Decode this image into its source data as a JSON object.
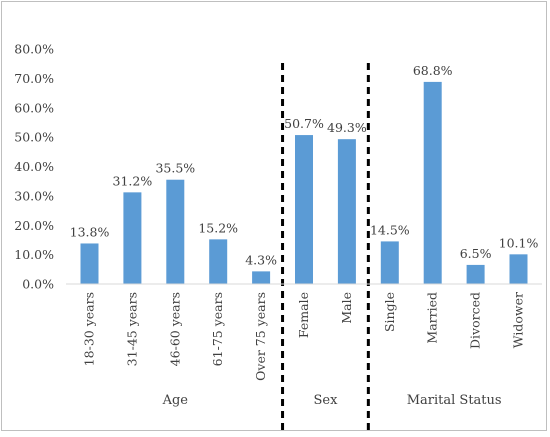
{
  "chart_data": {
    "type": "bar",
    "title": "",
    "xlabel": "",
    "ylabel": "",
    "ylim": [
      0,
      80
    ],
    "yticks": [
      "0.0%",
      "10.0%",
      "20.0%",
      "30.0%",
      "40.0%",
      "50.0%",
      "60.0%",
      "70.0%",
      "80.0%"
    ],
    "grid": false,
    "bar_color": "#5b9bd5",
    "separator_style": "dashed black vertical lines between groups",
    "categories": [
      "18-30 years",
      "31-45 years",
      "46-60 years",
      "61-75 years",
      "Over 75 years",
      "Female",
      "Male",
      "Single",
      "Married",
      "Divorced",
      "Widower"
    ],
    "values": [
      13.8,
      31.2,
      35.5,
      15.2,
      4.3,
      50.7,
      49.3,
      14.5,
      68.8,
      6.5,
      10.1
    ],
    "data_labels": [
      "13.8%",
      "31.2%",
      "35.5%",
      "15.2%",
      "4.3%",
      "50.7%",
      "49.3%",
      "14.5%",
      "68.8%",
      "6.5%",
      "10.1%"
    ],
    "groups": [
      {
        "name": "Age",
        "count": 5
      },
      {
        "name": "Sex",
        "count": 2
      },
      {
        "name": "Marital Status",
        "count": 4
      }
    ]
  }
}
